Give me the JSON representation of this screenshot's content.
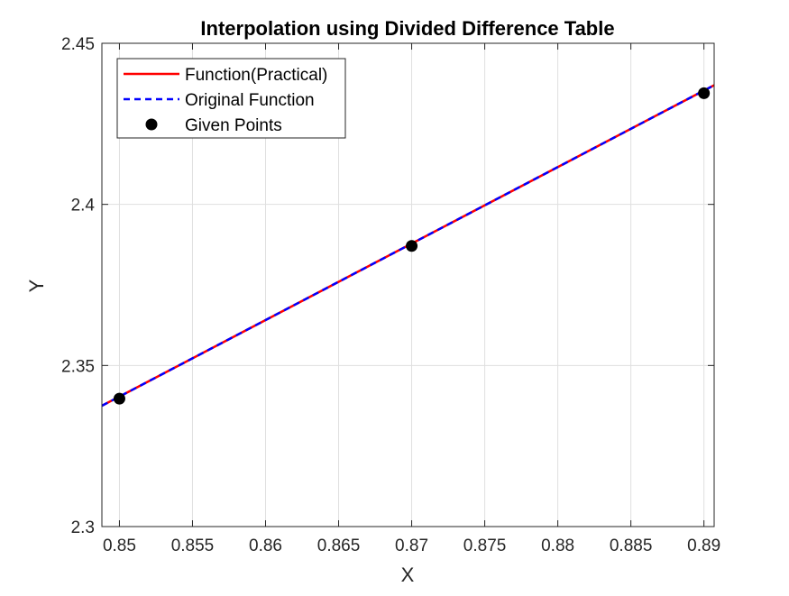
{
  "chart_data": {
    "type": "line",
    "title": "Interpolation using Divided Difference Table",
    "xlabel": "X",
    "ylabel": "Y",
    "xlim": [
      0.8488,
      0.8907
    ],
    "ylim": [
      2.3,
      2.45
    ],
    "xticks": [
      0.85,
      0.855,
      0.86,
      0.865,
      0.87,
      0.875,
      0.88,
      0.885,
      0.89
    ],
    "xtick_labels": [
      "0.85",
      "0.855",
      "0.86",
      "0.865",
      "0.87",
      "0.875",
      "0.88",
      "0.885",
      "0.89"
    ],
    "yticks": [
      2.3,
      2.35,
      2.4,
      2.45
    ],
    "ytick_labels": [
      "2.3",
      "2.35",
      "2.4",
      "2.45"
    ],
    "grid": true,
    "legend_position": "top-left",
    "series": [
      {
        "name": "Function(Practical)",
        "style": "solid",
        "color": "#ff0000",
        "x": [
          0.8488,
          0.8907
        ],
        "y": [
          2.3375,
          2.437
        ]
      },
      {
        "name": "Original Function",
        "style": "dashed",
        "color": "#0000ff",
        "x": [
          0.8488,
          0.8907
        ],
        "y": [
          2.3375,
          2.437
        ]
      },
      {
        "name": "Given Points",
        "style": "markers",
        "color": "#000000",
        "x": [
          0.85,
          0.87,
          0.89
        ],
        "y": [
          2.3397,
          2.3871,
          2.4345
        ]
      }
    ]
  }
}
